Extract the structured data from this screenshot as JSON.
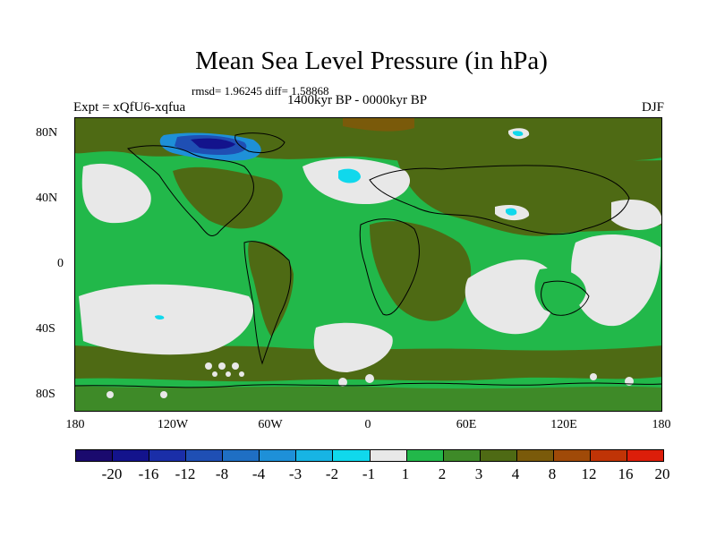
{
  "title": "Mean Sea Level Pressure (in hPa)",
  "stats": "rmsd= 1.96245 diff= 1.58868",
  "period": "1400kyr BP - 0000kyr BP",
  "experiment": "Expt = xQfU6-xqfua",
  "season": "DJF",
  "lat_labels": [
    "80N",
    "40N",
    "0",
    "40S",
    "80S"
  ],
  "lon_labels": [
    "180",
    "120W",
    "60W",
    "0",
    "60E",
    "120E",
    "180"
  ],
  "colorbar": {
    "labels": [
      "-20",
      "-16",
      "-12",
      "-8",
      "-4",
      "-3",
      "-2",
      "-1",
      "1",
      "2",
      "3",
      "4",
      "8",
      "12",
      "16",
      "20"
    ],
    "colors": [
      "#1a0a6e",
      "#13138c",
      "#1a2ea8",
      "#1f4fb4",
      "#1f6fc4",
      "#1e90d8",
      "#17b4e4",
      "#10d8ec",
      "#e8e8e8",
      "#22b84a",
      "#3e8a28",
      "#4e6a14",
      "#7a5a0a",
      "#a04a08",
      "#c03406",
      "#dc1e0a"
    ]
  },
  "colors": {
    "ocean_green": "#22b84a",
    "land_green": "#3e8a28",
    "olive": "#4e6a14",
    "brown": "#7a5a0a",
    "grey": "#e8e8e8",
    "cyan": "#10d8ec"
  }
}
